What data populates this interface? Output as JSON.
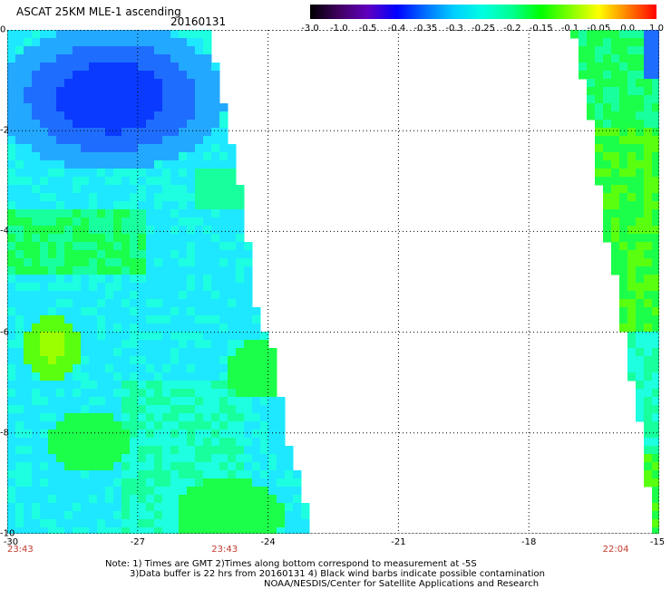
{
  "header": {
    "title": "ASCAT 25KM MLE-1 ascending",
    "date": "20160131"
  },
  "colorbar": {
    "labels": [
      "-3.0",
      "-1.0",
      "-0.5",
      "-0.4",
      "-0.35",
      "-0.3",
      "-0.25",
      "-0.2",
      "-0.15",
      "-0.1",
      "-0.05",
      "0.0",
      "1.0"
    ],
    "colors": [
      "#000000",
      "#400060",
      "#6000c0",
      "#0000ff",
      "#0070ff",
      "#00d0ff",
      "#00ffe0",
      "#00ff90",
      "#00ff00",
      "#80ff00",
      "#ffff00",
      "#ff8000",
      "#ff0000"
    ]
  },
  "axes": {
    "lon_range": [
      -30,
      -15
    ],
    "lat_range": [
      0,
      -10
    ],
    "x_ticks": [
      "-30",
      "-27",
      "-24",
      "-21",
      "-18",
      "-15"
    ],
    "y_ticks": [
      "0",
      "-2",
      "-4",
      "-6",
      "-8",
      "-10"
    ],
    "grid": "dotted"
  },
  "times": [
    {
      "label": "23:43",
      "lon": -29.7
    },
    {
      "label": "23:43",
      "lon": -25.0
    },
    {
      "label": "22:04",
      "lon": -16.0
    }
  ],
  "notes": {
    "line1": "Note: 1) Times are GMT 2)Times along bottom correspond to measurement at -5S",
    "line2": "3)Data buffer is 22 hrs from 20160131 4) Black wind barbs indicate possible contamination",
    "line3": "NOAA/NESDIS/Center for Satellite Applications and Research"
  },
  "palette": {
    "deep_blue": "#0a3aff",
    "blue": "#1f6dff",
    "light_blue": "#23a8ff",
    "cyan": "#1ee8ff",
    "aqua": "#1dffe0",
    "green_cyan": "#18ff9e",
    "green": "#1cff4a",
    "lime": "#5aff10",
    "yellow_green": "#9cff00"
  }
}
